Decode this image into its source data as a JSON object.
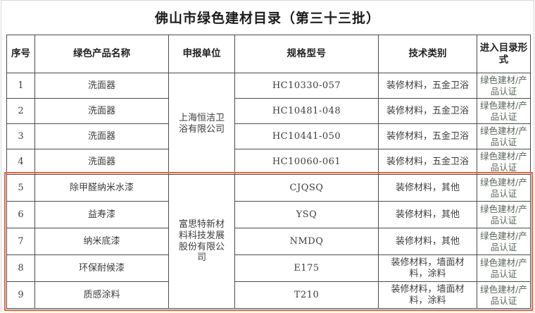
{
  "page": {
    "title": "佛山市绿色建材目录（第三十三批）"
  },
  "table": {
    "headers": [
      "序号",
      "绿色产品名称",
      "申报单位",
      "规格型号",
      "技术类别",
      "进入目录形式"
    ],
    "companies": [
      {
        "name": "上海恒洁卫浴有限公司",
        "applies_to_rows": "1-4"
      },
      {
        "name": "富思特新材料科技发展股份有限公司",
        "applies_to_rows": "5-9"
      }
    ],
    "rows": [
      {
        "no": "1",
        "name": "洗面器",
        "spec": "HC10330-057",
        "tech": "装修材料，五金卫浴",
        "entry": "绿色建材/产品认证"
      },
      {
        "no": "2",
        "name": "洗面器",
        "spec": "HC10481-048",
        "tech": "装修材料，五金卫浴",
        "entry": "绿色建材/产品认证"
      },
      {
        "no": "3",
        "name": "洗面器",
        "spec": "HC10441-050",
        "tech": "装修材料，五金卫浴",
        "entry": "绿色建材/产品认证"
      },
      {
        "no": "4",
        "name": "洗面器",
        "spec": "HC10060-061",
        "tech": "装修材料，五金卫浴",
        "entry": "绿色建材/产品认证"
      },
      {
        "no": "5",
        "name": "除甲醛纳米水漆",
        "spec": "CJQSQ",
        "tech": "装修材料，其他",
        "entry": "绿色建材/产品认证"
      },
      {
        "no": "6",
        "name": "益寿漆",
        "spec": "YSQ",
        "tech": "装修材料，其他",
        "entry": "绿色建材/产品认证"
      },
      {
        "no": "7",
        "name": "纳米底漆",
        "spec": "NMDQ",
        "tech": "装修材料，其他",
        "entry": "绿色建材/产品认证"
      },
      {
        "no": "8",
        "name": "环保耐候漆",
        "spec": "E175",
        "tech": "装修材料，墙面材料，涂料",
        "entry": "绿色建材/产品认证"
      },
      {
        "no": "9",
        "name": "质感涂料",
        "spec": "T210",
        "tech": "装修材料，墙面材料，涂料",
        "entry": "绿色建材/产品认证"
      }
    ],
    "highlight_color": "#d96a45"
  }
}
